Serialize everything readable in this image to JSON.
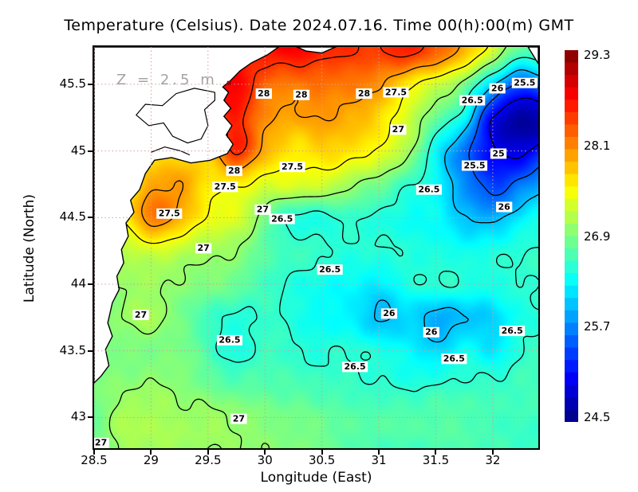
{
  "title": "Temperature (Celsius). Date 2024.07.16. Time 00(h):00(m) GMT",
  "annotation": "Z = 2.5 m",
  "axes": {
    "x": {
      "label": "Longitude (East)",
      "ticks": [
        {
          "v": 28.5,
          "t": "28.5"
        },
        {
          "v": 29,
          "t": "29"
        },
        {
          "v": 29.5,
          "t": "29.5"
        },
        {
          "v": 30,
          "t": "30"
        },
        {
          "v": 30.5,
          "t": "30.5"
        },
        {
          "v": 31,
          "t": "31"
        },
        {
          "v": 31.5,
          "t": "31.5"
        },
        {
          "v": 32,
          "t": "32"
        }
      ]
    },
    "y": {
      "label": "Latitude (North)",
      "ticks": [
        {
          "v": 45.5,
          "t": "45.5"
        },
        {
          "v": 45,
          "t": "45"
        },
        {
          "v": 44.5,
          "t": "44.5"
        },
        {
          "v": 44,
          "t": "44"
        },
        {
          "v": 43.5,
          "t": "43.5"
        },
        {
          "v": 43,
          "t": "43"
        }
      ]
    }
  },
  "colorbar": {
    "colormap": "jet",
    "steps": 30,
    "min_value": 24.44,
    "max_value": 29.36,
    "tick_values": [
      29.3,
      28.1,
      26.9,
      25.7,
      24.5
    ],
    "tick_labels": [
      "29.3",
      "28.1",
      "26.9",
      "25.7",
      "24.5"
    ]
  },
  "colors": {
    "background": "#ffffff",
    "land": "#ffffff",
    "coast": "#000000",
    "contour": "#000000",
    "grid_line": "#cf9f9f",
    "annotation": "#a3a3a3",
    "hotspot": "#990000"
  },
  "chart_data": {
    "type": "heatmap",
    "title": "Temperature (Celsius). Date 2024.07.16. Time 00(h):00(m) GMT",
    "xlabel": "Longitude (East)",
    "ylabel": "Latitude (North)",
    "lon_range": [
      28.5,
      32.4
    ],
    "lat_range": [
      42.77,
      45.78
    ],
    "units": "Celsius",
    "depth": "2.5 m",
    "grid": {
      "lon_start": 28.5,
      "lon_step": 0.25,
      "lat_start": 45.75,
      "lat_step": -0.25,
      "values": [
        [
          28.3,
          28.3,
          28.35,
          28.4,
          28.45,
          28.5,
          28.65,
          28.75,
          28.6,
          28.5,
          28.45,
          28.6,
          28.3,
          27.9,
          27.3,
          26.7,
          26.8
        ],
        [
          28.2,
          28.2,
          28.25,
          28.3,
          28.55,
          28.8,
          28.25,
          28.15,
          28.2,
          28.15,
          28.05,
          27.6,
          27.3,
          26.9,
          26.05,
          25.45,
          25.8
        ],
        [
          27.9,
          27.9,
          27.95,
          28.0,
          28.2,
          28.6,
          28.05,
          27.95,
          28.0,
          27.9,
          27.7,
          27.3,
          26.8,
          26.3,
          25.0,
          24.62,
          24.7
        ],
        [
          27.6,
          27.6,
          27.65,
          27.7,
          27.8,
          28.55,
          27.9,
          27.6,
          27.7,
          27.65,
          27.45,
          27.1,
          26.3,
          25.6,
          25.05,
          24.9,
          25.35
        ],
        [
          27.4,
          27.5,
          27.9,
          28.0,
          27.6,
          27.55,
          27.35,
          27.35,
          27.3,
          27.05,
          26.85,
          26.55,
          26.3,
          25.75,
          25.35,
          25.6,
          25.95
        ],
        [
          27.3,
          27.5,
          28.15,
          27.9,
          27.45,
          27.35,
          26.85,
          26.45,
          26.45,
          26.55,
          26.45,
          26.35,
          26.3,
          26.0,
          25.9,
          26.2,
          26.4
        ],
        [
          27.1,
          27.15,
          27.3,
          27.2,
          27.05,
          27.0,
          26.7,
          26.6,
          26.55,
          26.45,
          26.5,
          26.45,
          26.4,
          26.35,
          26.4,
          26.5,
          26.5
        ],
        [
          26.9,
          27.0,
          27.05,
          26.95,
          26.9,
          26.8,
          26.6,
          26.45,
          26.35,
          26.3,
          26.2,
          26.4,
          26.5,
          26.45,
          26.4,
          26.5,
          26.55
        ],
        [
          26.9,
          27.0,
          27.1,
          26.85,
          26.6,
          26.45,
          26.55,
          26.45,
          26.3,
          26.25,
          25.95,
          26.1,
          25.9,
          25.98,
          26.1,
          26.4,
          26.5
        ],
        [
          26.85,
          26.9,
          26.85,
          26.9,
          26.65,
          26.4,
          26.6,
          26.5,
          26.45,
          26.5,
          26.4,
          26.3,
          26.1,
          26.35,
          26.2,
          26.5,
          26.6
        ],
        [
          26.9,
          26.95,
          27.0,
          26.95,
          26.8,
          26.7,
          26.7,
          26.65,
          26.6,
          26.55,
          26.5,
          26.45,
          26.5,
          26.55,
          26.55,
          26.6,
          26.6
        ],
        [
          26.8,
          27.1,
          27.1,
          27.05,
          27.05,
          27.0,
          26.9,
          26.85,
          26.8,
          26.7,
          26.7,
          26.7,
          26.7,
          26.7,
          26.6,
          26.6,
          26.55
        ],
        [
          26.9,
          27.05,
          27.1,
          27.05,
          27.0,
          27.0,
          26.95,
          26.9,
          26.85,
          26.7,
          26.65,
          26.6,
          26.65,
          26.65,
          26.6,
          26.55,
          26.5
        ]
      ]
    },
    "contour_levels": [
      25,
      25.5,
      26,
      26.5,
      27,
      27.5,
      28,
      28.5
    ],
    "contour_labels": [
      {
        "v": "28",
        "lon": 29.99,
        "lat": 45.43
      },
      {
        "v": "28",
        "lon": 30.32,
        "lat": 45.42
      },
      {
        "v": "28",
        "lon": 30.87,
        "lat": 45.43
      },
      {
        "v": "28",
        "lon": 29.73,
        "lat": 44.85
      },
      {
        "v": "27.5",
        "lon": 31.15,
        "lat": 45.44
      },
      {
        "v": "27.5",
        "lon": 30.24,
        "lat": 44.88
      },
      {
        "v": "27.5",
        "lon": 29.65,
        "lat": 44.73
      },
      {
        "v": "27.5",
        "lon": 29.16,
        "lat": 44.53
      },
      {
        "v": "27",
        "lon": 31.17,
        "lat": 45.16
      },
      {
        "v": "27",
        "lon": 29.98,
        "lat": 44.56
      },
      {
        "v": "27",
        "lon": 29.46,
        "lat": 44.27
      },
      {
        "v": "27",
        "lon": 28.91,
        "lat": 43.77
      },
      {
        "v": "27",
        "lon": 29.77,
        "lat": 42.99
      },
      {
        "v": "27",
        "lon": 28.56,
        "lat": 42.81
      },
      {
        "v": "26.5",
        "lon": 31.82,
        "lat": 45.38
      },
      {
        "v": "26.5",
        "lon": 31.44,
        "lat": 44.71
      },
      {
        "v": "26.5",
        "lon": 30.15,
        "lat": 44.49
      },
      {
        "v": "26.5",
        "lon": 30.57,
        "lat": 44.11
      },
      {
        "v": "26.5",
        "lon": 29.69,
        "lat": 43.58
      },
      {
        "v": "26.5",
        "lon": 30.79,
        "lat": 43.38
      },
      {
        "v": "26.5",
        "lon": 31.66,
        "lat": 43.44
      },
      {
        "v": "26.5",
        "lon": 32.17,
        "lat": 43.65
      },
      {
        "v": "26",
        "lon": 32.04,
        "lat": 45.47
      },
      {
        "v": "26",
        "lon": 32.1,
        "lat": 44.58
      },
      {
        "v": "26",
        "lon": 31.09,
        "lat": 43.78
      },
      {
        "v": "26",
        "lon": 31.46,
        "lat": 43.64
      },
      {
        "v": "25.5",
        "lon": 32.28,
        "lat": 45.51
      },
      {
        "v": "25.5",
        "lon": 31.84,
        "lat": 44.89
      },
      {
        "v": "25",
        "lon": 32.05,
        "lat": 44.98
      }
    ],
    "land_polygons": [
      [
        [
          30.12,
          45.78
        ],
        [
          30.02,
          45.72
        ],
        [
          29.88,
          45.66
        ],
        [
          29.78,
          45.6
        ],
        [
          29.7,
          45.53
        ],
        [
          29.63,
          45.48
        ],
        [
          29.68,
          45.44
        ],
        [
          29.64,
          45.38
        ],
        [
          29.7,
          45.32
        ],
        [
          29.64,
          45.26
        ],
        [
          29.71,
          45.19
        ],
        [
          29.66,
          45.12
        ],
        [
          29.72,
          45.05
        ],
        [
          29.67,
          44.98
        ],
        [
          29.52,
          44.93
        ],
        [
          29.35,
          44.91
        ],
        [
          29.18,
          44.95
        ],
        [
          29.03,
          44.93
        ],
        [
          28.95,
          44.83
        ],
        [
          28.9,
          44.71
        ],
        [
          28.82,
          44.63
        ],
        [
          28.85,
          44.54
        ],
        [
          28.78,
          44.46
        ],
        [
          28.8,
          44.36
        ],
        [
          28.74,
          44.26
        ],
        [
          28.76,
          44.16
        ],
        [
          28.7,
          44.06
        ],
        [
          28.72,
          43.96
        ],
        [
          28.66,
          43.86
        ],
        [
          28.62,
          43.71
        ],
        [
          28.66,
          43.61
        ],
        [
          28.6,
          43.51
        ],
        [
          28.63,
          43.39
        ],
        [
          28.56,
          43.31
        ],
        [
          28.5,
          43.26
        ],
        [
          28.5,
          45.78
        ]
      ],
      [
        [
          30.28,
          45.78
        ],
        [
          30.62,
          45.78
        ],
        [
          30.5,
          45.735
        ],
        [
          30.36,
          45.75
        ]
      ],
      [
        [
          32.31,
          45.78
        ],
        [
          32.4,
          45.78
        ],
        [
          32.4,
          45.655
        ]
      ]
    ],
    "lagoon_outlines": [
      [
        [
          29.56,
          45.44
        ],
        [
          29.38,
          45.47
        ],
        [
          29.22,
          45.43
        ],
        [
          29.1,
          45.34
        ],
        [
          28.95,
          45.35
        ],
        [
          28.87,
          45.27
        ],
        [
          28.98,
          45.19
        ],
        [
          29.11,
          45.21
        ],
        [
          29.19,
          45.11
        ],
        [
          29.32,
          45.06
        ],
        [
          29.44,
          45.09
        ],
        [
          29.5,
          45.19
        ],
        [
          29.47,
          45.31
        ],
        [
          29.56,
          45.38
        ],
        [
          29.56,
          45.44
        ]
      ],
      [
        [
          29.0,
          44.99
        ],
        [
          29.12,
          45.03
        ],
        [
          29.26,
          45.0
        ],
        [
          29.34,
          44.97
        ]
      ]
    ],
    "hotspot": {
      "lon": 29.685,
      "lat": 45.51
    }
  }
}
